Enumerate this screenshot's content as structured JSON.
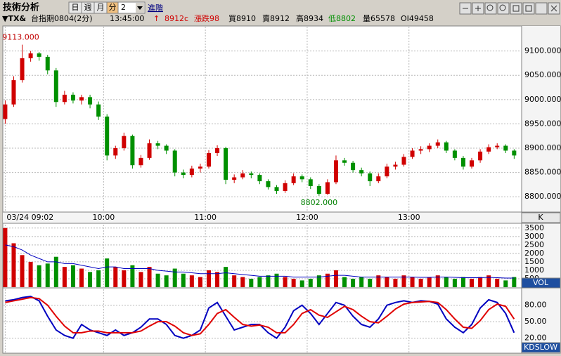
{
  "toolbar": {
    "title": "技術分析",
    "buttons": [
      "日",
      "週",
      "月",
      "分"
    ],
    "period": "2",
    "advanced": "進階"
  },
  "quote": {
    "symbol": "▼TX&",
    "name": "台指期0804(2分)",
    "time": "13:45:00",
    "arrow": "↑",
    "last": "8912c",
    "change": "漲跌98",
    "bid": "買8910",
    "ask": "賣8912",
    "high": "高8934",
    "low": "低8802",
    "volume": "量65578",
    "oi": "OI49458"
  },
  "chart_data": [
    {
      "type": "candlestick",
      "label": "K",
      "up_color": "#d00000",
      "down_color": "#009000",
      "high_label": "9113.000",
      "low_label": "8802.000",
      "grid": true,
      "xlim": [
        1,
        306
      ],
      "ylim": [
        8770,
        9150
      ],
      "xticks": [
        {
          "value": 2,
          "label": "03/24 09:02"
        },
        {
          "value": 60,
          "label": "10:00"
        },
        {
          "value": 120,
          "label": "11:00"
        },
        {
          "value": 180,
          "label": "12:00"
        },
        {
          "value": 240,
          "label": "13:00"
        }
      ],
      "yticks": [
        {
          "value": 8800,
          "label": "8800.000"
        },
        {
          "value": 8850,
          "label": "8850.000"
        },
        {
          "value": 8900,
          "label": "8900.000"
        },
        {
          "value": 8950,
          "label": "8950.000"
        },
        {
          "value": 9000,
          "label": "9000.000"
        },
        {
          "value": 9050,
          "label": "9050.000"
        },
        {
          "value": 9100,
          "label": "9100.000"
        }
      ],
      "x": [
        2,
        7,
        12,
        17,
        22,
        27,
        32,
        37,
        42,
        47,
        52,
        57,
        62,
        67,
        72,
        77,
        82,
        87,
        92,
        97,
        102,
        107,
        112,
        117,
        122,
        127,
        132,
        137,
        142,
        147,
        152,
        157,
        162,
        167,
        172,
        177,
        182,
        187,
        192,
        197,
        202,
        207,
        212,
        217,
        222,
        227,
        232,
        237,
        242,
        247,
        252,
        257,
        262,
        267,
        272,
        277,
        282,
        287,
        292,
        297,
        302
      ],
      "ohlc": [
        [
          8960,
          8998,
          8950,
          8990
        ],
        [
          8990,
          9048,
          8985,
          9040
        ],
        [
          9040,
          9113,
          9035,
          9085
        ],
        [
          9085,
          9100,
          9078,
          9095
        ],
        [
          9095,
          9098,
          9080,
          9088
        ],
        [
          9088,
          9092,
          9052,
          9060
        ],
        [
          9060,
          9065,
          8985,
          8995
        ],
        [
          8995,
          9018,
          8990,
          9010
        ],
        [
          9010,
          9015,
          8992,
          8998
        ],
        [
          8998,
          9010,
          8990,
          9005
        ],
        [
          9005,
          9010,
          8982,
          8990
        ],
        [
          8990,
          8996,
          8958,
          8965
        ],
        [
          8965,
          8970,
          8875,
          8885
        ],
        [
          8885,
          8905,
          8878,
          8900
        ],
        [
          8900,
          8932,
          8895,
          8925
        ],
        [
          8925,
          8928,
          8858,
          8865
        ],
        [
          8865,
          8886,
          8860,
          8880
        ],
        [
          8880,
          8918,
          8876,
          8910
        ],
        [
          8910,
          8915,
          8898,
          8905
        ],
        [
          8905,
          8908,
          8888,
          8895
        ],
        [
          8895,
          8898,
          8842,
          8850
        ],
        [
          8850,
          8856,
          8838,
          8845
        ],
        [
          8845,
          8864,
          8840,
          8858
        ],
        [
          8858,
          8868,
          8850,
          8862
        ],
        [
          8862,
          8896,
          8858,
          8890
        ],
        [
          8890,
          8906,
          8884,
          8900
        ],
        [
          8900,
          8903,
          8826,
          8835
        ],
        [
          8835,
          8846,
          8828,
          8840
        ],
        [
          8840,
          8855,
          8836,
          8848
        ],
        [
          8848,
          8852,
          8838,
          8845
        ],
        [
          8845,
          8848,
          8826,
          8832
        ],
        [
          8832,
          8836,
          8815,
          8820
        ],
        [
          8820,
          8824,
          8806,
          8812
        ],
        [
          8812,
          8834,
          8808,
          8828
        ],
        [
          8828,
          8848,
          8824,
          8842
        ],
        [
          8842,
          8846,
          8830,
          8836
        ],
        [
          8836,
          8840,
          8816,
          8822
        ],
        [
          8822,
          8826,
          8802,
          8806
        ],
        [
          8806,
          8836,
          8804,
          8830
        ],
        [
          8830,
          8885,
          8826,
          8875
        ],
        [
          8875,
          8880,
          8864,
          8870
        ],
        [
          8870,
          8874,
          8850,
          8855
        ],
        [
          8855,
          8860,
          8842,
          8848
        ],
        [
          8848,
          8852,
          8822,
          8832
        ],
        [
          8832,
          8848,
          8828,
          8842
        ],
        [
          8842,
          8868,
          8838,
          8862
        ],
        [
          8862,
          8872,
          8856,
          8866
        ],
        [
          8866,
          8888,
          8862,
          8882
        ],
        [
          8882,
          8900,
          8878,
          8895
        ],
        [
          8895,
          8904,
          8888,
          8898
        ],
        [
          8898,
          8910,
          8892,
          8905
        ],
        [
          8905,
          8918,
          8900,
          8912
        ],
        [
          8912,
          8915,
          8890,
          8895
        ],
        [
          8895,
          8898,
          8875,
          8880
        ],
        [
          8880,
          8884,
          8856,
          8862
        ],
        [
          8862,
          8880,
          8858,
          8875
        ],
        [
          8875,
          8898,
          8870,
          8893
        ],
        [
          8893,
          8908,
          8888,
          8902
        ],
        [
          8902,
          8910,
          8898,
          8905
        ],
        [
          8905,
          8908,
          8890,
          8895
        ],
        [
          8895,
          8898,
          8878,
          8885
        ]
      ]
    },
    {
      "type": "bar",
      "label": "VOL",
      "grid": true,
      "ylim": [
        0,
        3700
      ],
      "yticks": [
        500,
        1000,
        1500,
        2000,
        2500,
        3000,
        3500
      ],
      "values": [
        3500,
        2600,
        1900,
        1500,
        1300,
        1400,
        1800,
        1200,
        1300,
        1100,
        900,
        1000,
        1700,
        1200,
        1000,
        1300,
        900,
        1200,
        800,
        700,
        1100,
        800,
        700,
        600,
        1000,
        900,
        1200,
        700,
        600,
        500,
        600,
        700,
        800,
        600,
        500,
        400,
        500,
        700,
        800,
        1000,
        600,
        500,
        600,
        500,
        700,
        600,
        500,
        700,
        600,
        500,
        600,
        700,
        600,
        500,
        600,
        500,
        600,
        700,
        500,
        400,
        600
      ],
      "ma_color": "#0000c0",
      "ma_values": [
        2500,
        2400,
        2200,
        1900,
        1700,
        1500,
        1500,
        1400,
        1400,
        1300,
        1200,
        1100,
        1200,
        1200,
        1100,
        1100,
        1100,
        1100,
        1000,
        950,
        900,
        900,
        850,
        800,
        800,
        800,
        850,
        800,
        750,
        700,
        650,
        650,
        650,
        650,
        600,
        600,
        600,
        600,
        650,
        700,
        700,
        650,
        600,
        600,
        600,
        600,
        600,
        600,
        600,
        580,
        580,
        600,
        600,
        580,
        560,
        560,
        560,
        580,
        560,
        540,
        540
      ]
    },
    {
      "type": "line",
      "label": "KDSLOW",
      "grid": true,
      "ylim": [
        -6,
        109
      ],
      "yticks": [
        {
          "value": 20,
          "label": "20.00"
        },
        {
          "value": 50,
          "label": "50.00"
        },
        {
          "value": 80,
          "label": "80.00"
        }
      ],
      "series": [
        {
          "color": "#0000c0",
          "values": [
            88,
            90,
            94,
            96,
            88,
            60,
            35,
            25,
            20,
            45,
            35,
            30,
            25,
            35,
            25,
            30,
            40,
            55,
            55,
            45,
            25,
            20,
            25,
            35,
            75,
            85,
            60,
            35,
            40,
            45,
            45,
            30,
            20,
            40,
            70,
            80,
            65,
            45,
            65,
            85,
            80,
            60,
            45,
            40,
            55,
            80,
            85,
            88,
            85,
            88,
            87,
            82,
            55,
            40,
            30,
            45,
            75,
            90,
            85,
            65,
            30
          ]
        },
        {
          "color": "#e00000",
          "values": [
            85,
            88,
            91,
            94,
            92,
            80,
            60,
            42,
            30,
            30,
            33,
            33,
            30,
            30,
            30,
            30,
            33,
            42,
            50,
            50,
            42,
            30,
            25,
            28,
            45,
            65,
            72,
            58,
            45,
            42,
            44,
            40,
            30,
            30,
            45,
            65,
            72,
            62,
            58,
            68,
            78,
            72,
            60,
            50,
            48,
            60,
            73,
            82,
            85,
            86,
            87,
            85,
            72,
            55,
            40,
            38,
            52,
            72,
            82,
            78,
            55
          ]
        }
      ]
    }
  ]
}
